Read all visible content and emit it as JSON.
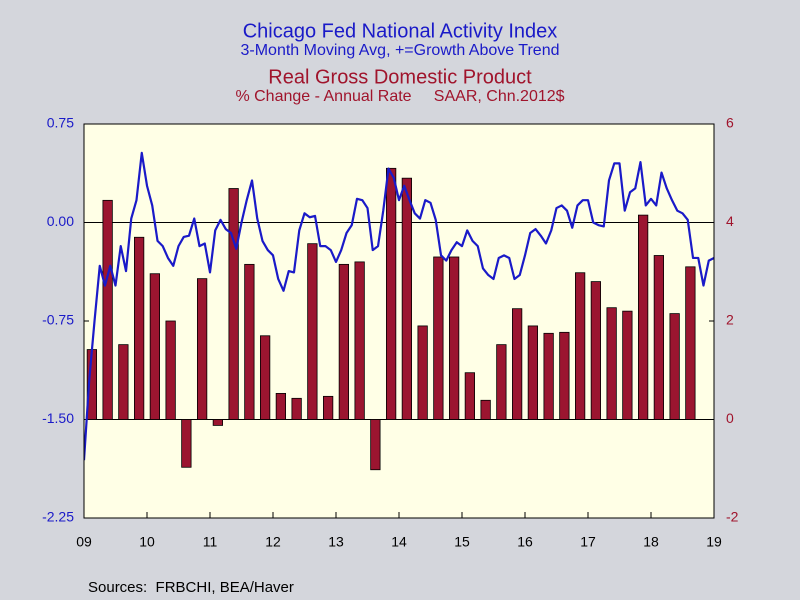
{
  "chart_data": {
    "type": "combo",
    "title": "Chicago Fed National Activity Index",
    "subtitle": "3-Month Moving Avg, +=Growth Above Trend",
    "title2": "Real Gross Domestic Product",
    "subtitle2": "% Change - Annual Rate     SAAR, Chn.2012$",
    "source": "Sources:  FRBCHI, BEA/Haver",
    "xlim": [
      2009,
      2019
    ],
    "xticks": [
      {
        "value": 2009,
        "label": "09"
      },
      {
        "value": 2010,
        "label": "10"
      },
      {
        "value": 2011,
        "label": "11"
      },
      {
        "value": 2012,
        "label": "12"
      },
      {
        "value": 2013,
        "label": "13"
      },
      {
        "value": 2014,
        "label": "14"
      },
      {
        "value": 2015,
        "label": "15"
      },
      {
        "value": 2016,
        "label": "16"
      },
      {
        "value": 2017,
        "label": "17"
      },
      {
        "value": 2018,
        "label": "18"
      },
      {
        "value": 2019,
        "label": "19"
      }
    ],
    "ylim": [
      -2.25,
      0.75
    ],
    "yticks": [
      0.75,
      {
        "value": 0,
        "label": "0.00"
      },
      -0.75,
      {
        "value": -1.5,
        "label": "-1.50"
      },
      -2.25
    ],
    "y2lim": [
      -2,
      6
    ],
    "y2ticks": [
      6,
      4,
      2,
      0,
      -2
    ],
    "series": [
      {
        "type": "bar",
        "axis": "y2",
        "color": "#9b1530",
        "x": [
          2009.125,
          2009.375,
          2009.625,
          2009.875,
          2010.125,
          2010.375,
          2010.625,
          2010.875,
          2011.125,
          2011.375,
          2011.625,
          2011.875,
          2012.125,
          2012.375,
          2012.625,
          2012.875,
          2013.125,
          2013.375,
          2013.625,
          2013.875,
          2014.125,
          2014.375,
          2014.625,
          2014.875,
          2015.125,
          2015.375,
          2015.625,
          2015.875,
          2016.125,
          2016.375,
          2016.625,
          2016.875,
          2017.125,
          2017.375,
          2017.625,
          2017.875,
          2018.125,
          2018.375,
          2018.625
        ],
        "values": [
          1.42,
          4.45,
          1.52,
          3.7,
          2.96,
          2.0,
          -0.97,
          2.86,
          -0.12,
          4.69,
          3.15,
          1.7,
          0.53,
          0.43,
          3.57,
          0.47,
          3.15,
          3.2,
          -1.02,
          5.1,
          4.9,
          1.9,
          3.3,
          3.3,
          0.95,
          0.39,
          1.52,
          2.25,
          1.9,
          1.75,
          1.77,
          2.98,
          2.8,
          2.27,
          2.2,
          4.15,
          3.33,
          2.15,
          3.1
        ]
      },
      {
        "type": "line",
        "axis": "y",
        "color": "#1a1ac8",
        "x": [
          2009,
          2009.083,
          2009.167,
          2009.25,
          2009.333,
          2009.417,
          2009.5,
          2009.583,
          2009.667,
          2009.75,
          2009.833,
          2009.917,
          2010,
          2010.083,
          2010.167,
          2010.25,
          2010.333,
          2010.417,
          2010.5,
          2010.583,
          2010.667,
          2010.75,
          2010.833,
          2010.917,
          2011,
          2011.083,
          2011.167,
          2011.25,
          2011.333,
          2011.417,
          2011.5,
          2011.583,
          2011.667,
          2011.75,
          2011.833,
          2011.917,
          2012,
          2012.083,
          2012.167,
          2012.25,
          2012.333,
          2012.417,
          2012.5,
          2012.583,
          2012.667,
          2012.75,
          2012.833,
          2012.917,
          2013,
          2013.083,
          2013.167,
          2013.25,
          2013.333,
          2013.417,
          2013.5,
          2013.583,
          2013.667,
          2013.75,
          2013.833,
          2013.917,
          2014,
          2014.083,
          2014.167,
          2014.25,
          2014.333,
          2014.417,
          2014.5,
          2014.583,
          2014.667,
          2014.75,
          2014.833,
          2014.917,
          2015,
          2015.083,
          2015.167,
          2015.25,
          2015.333,
          2015.417,
          2015.5,
          2015.583,
          2015.667,
          2015.75,
          2015.833,
          2015.917,
          2016,
          2016.083,
          2016.167,
          2016.25,
          2016.333,
          2016.417,
          2016.5,
          2016.583,
          2016.667,
          2016.75,
          2016.833,
          2016.917,
          2017,
          2017.083,
          2017.167,
          2017.25,
          2017.333,
          2017.417,
          2017.5,
          2017.583,
          2017.667,
          2017.75,
          2017.833,
          2017.917,
          2018,
          2018.083,
          2018.167,
          2018.25,
          2018.333,
          2018.417,
          2018.5,
          2018.583,
          2018.667,
          2018.75,
          2018.833,
          2018.917,
          2019
        ],
        "values": [
          -1.81,
          -1.2,
          -0.75,
          -0.33,
          -0.48,
          -0.33,
          -0.48,
          -0.18,
          -0.37,
          0.03,
          0.17,
          0.53,
          0.28,
          0.13,
          -0.14,
          -0.18,
          -0.27,
          -0.33,
          -0.18,
          -0.11,
          -0.1,
          0.03,
          -0.18,
          -0.16,
          -0.38,
          -0.06,
          0.02,
          -0.05,
          -0.08,
          -0.2,
          0,
          0.17,
          0.32,
          0.03,
          -0.14,
          -0.21,
          -0.25,
          -0.43,
          -0.52,
          -0.37,
          -0.38,
          -0.06,
          0.07,
          0.04,
          0.05,
          -0.18,
          -0.18,
          -0.21,
          -0.3,
          -0.21,
          -0.08,
          -0.02,
          0.18,
          0.17,
          0.11,
          -0.21,
          -0.18,
          0.09,
          0.41,
          0.34,
          0.17,
          0.28,
          0.17,
          0.07,
          0.03,
          0.17,
          0.15,
          0.02,
          -0.25,
          -0.29,
          -0.21,
          -0.15,
          -0.18,
          -0.06,
          -0.14,
          -0.18,
          -0.35,
          -0.4,
          -0.43,
          -0.27,
          -0.25,
          -0.27,
          -0.43,
          -0.4,
          -0.25,
          -0.08,
          -0.05,
          -0.1,
          -0.16,
          -0.06,
          0.11,
          0.13,
          0.09,
          -0.04,
          0.13,
          0.17,
          0.17,
          0,
          -0.02,
          -0.03,
          0.32,
          0.45,
          0.45,
          0.09,
          0.23,
          0.26,
          0.46,
          0.13,
          0.18,
          0.13,
          0.38,
          0.26,
          0.17,
          0.09,
          0.07,
          0.02,
          -0.27,
          -0.27,
          -0.48,
          -0.29,
          -0.27
        ]
      }
    ]
  }
}
